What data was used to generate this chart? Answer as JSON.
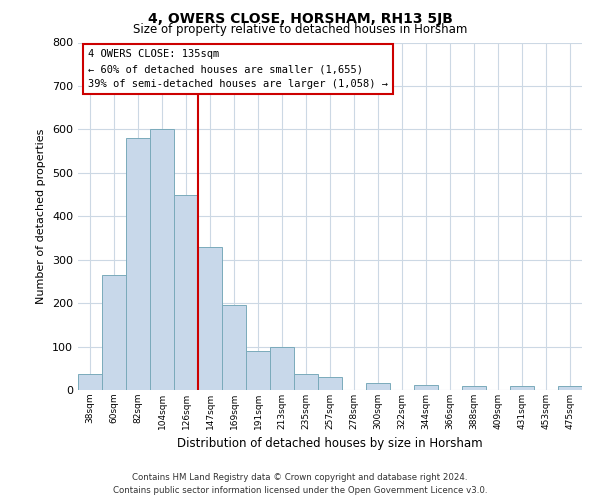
{
  "title": "4, OWERS CLOSE, HORSHAM, RH13 5JB",
  "subtitle": "Size of property relative to detached houses in Horsham",
  "xlabel": "Distribution of detached houses by size in Horsham",
  "ylabel": "Number of detached properties",
  "bar_labels": [
    "38sqm",
    "60sqm",
    "82sqm",
    "104sqm",
    "126sqm",
    "147sqm",
    "169sqm",
    "191sqm",
    "213sqm",
    "235sqm",
    "257sqm",
    "278sqm",
    "300sqm",
    "322sqm",
    "344sqm",
    "366sqm",
    "388sqm",
    "409sqm",
    "431sqm",
    "453sqm",
    "475sqm"
  ],
  "bar_values": [
    37,
    265,
    580,
    600,
    450,
    330,
    195,
    90,
    100,
    37,
    30,
    0,
    15,
    0,
    12,
    0,
    10,
    0,
    10,
    0,
    10
  ],
  "bar_color": "#c8d8ea",
  "bar_edge_color": "#7aaabb",
  "vline_x_index": 4,
  "vline_color": "#cc0000",
  "annotation_text": "4 OWERS CLOSE: 135sqm\n← 60% of detached houses are smaller (1,655)\n39% of semi-detached houses are larger (1,058) →",
  "annotation_box_color": "#cc0000",
  "ylim": [
    0,
    800
  ],
  "yticks": [
    0,
    100,
    200,
    300,
    400,
    500,
    600,
    700,
    800
  ],
  "footer_line1": "Contains HM Land Registry data © Crown copyright and database right 2024.",
  "footer_line2": "Contains public sector information licensed under the Open Government Licence v3.0.",
  "bg_color": "#ffffff",
  "grid_color": "#ccd8e4"
}
